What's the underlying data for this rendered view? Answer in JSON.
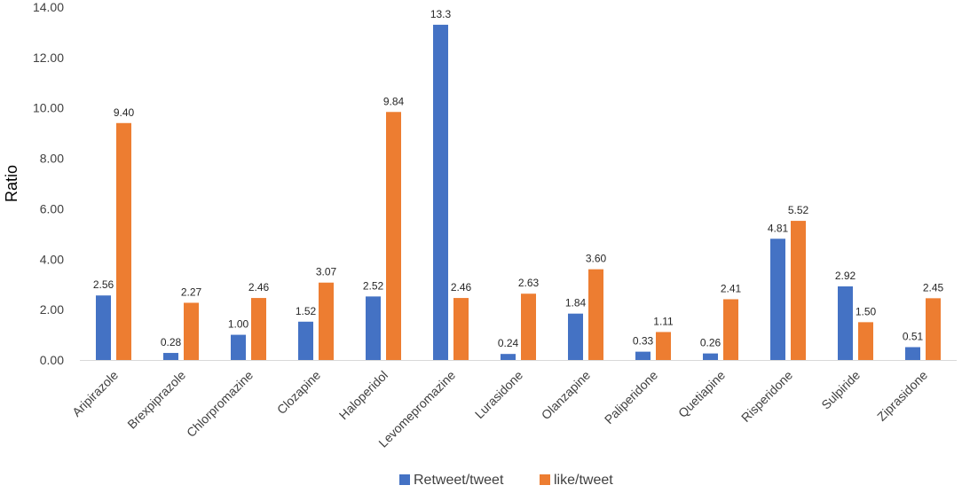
{
  "chart_data": {
    "type": "bar",
    "title": "",
    "xlabel": "",
    "ylabel": "Ratio",
    "ylim": [
      0,
      14
    ],
    "yticks": [
      "0.00",
      "2.00",
      "4.00",
      "6.00",
      "8.00",
      "10.00",
      "12.00",
      "14.00"
    ],
    "grid": false,
    "legend_position": "bottom",
    "categories": [
      "Aripirazole",
      "Brexpiprazole",
      "Chlorpromazine",
      "Clozapine",
      "Haloperidol",
      "Levomepromazine",
      "Lurasidone",
      "Olanzapine",
      "Paliperidone",
      "Quetiapine",
      "Risperidone",
      "Sulpiride",
      "Ziprasidone"
    ],
    "series": [
      {
        "name": "Retweet/tweet",
        "color": "#4472C4",
        "values": [
          2.56,
          0.28,
          1.0,
          1.52,
          2.52,
          13.3,
          0.24,
          1.84,
          0.33,
          0.26,
          4.81,
          2.92,
          0.51
        ],
        "labels": [
          "2.56",
          "0.28",
          "1.00",
          "1.52",
          "2.52",
          "13.3",
          "0.24",
          "1.84",
          "0.33",
          "0.26",
          "4.81",
          "2.92",
          "0.51"
        ]
      },
      {
        "name": "like/tweet",
        "color": "#ED7D31",
        "values": [
          9.4,
          2.27,
          2.46,
          3.07,
          9.84,
          2.46,
          2.63,
          3.6,
          1.11,
          2.41,
          5.52,
          1.5,
          2.45
        ],
        "labels": [
          "9.40",
          "2.27",
          "2.46",
          "3.07",
          "9.84",
          "2.46",
          "2.63",
          "3.60",
          "1.11",
          "2.41",
          "5.52",
          "1.50",
          "2.45"
        ]
      }
    ]
  }
}
